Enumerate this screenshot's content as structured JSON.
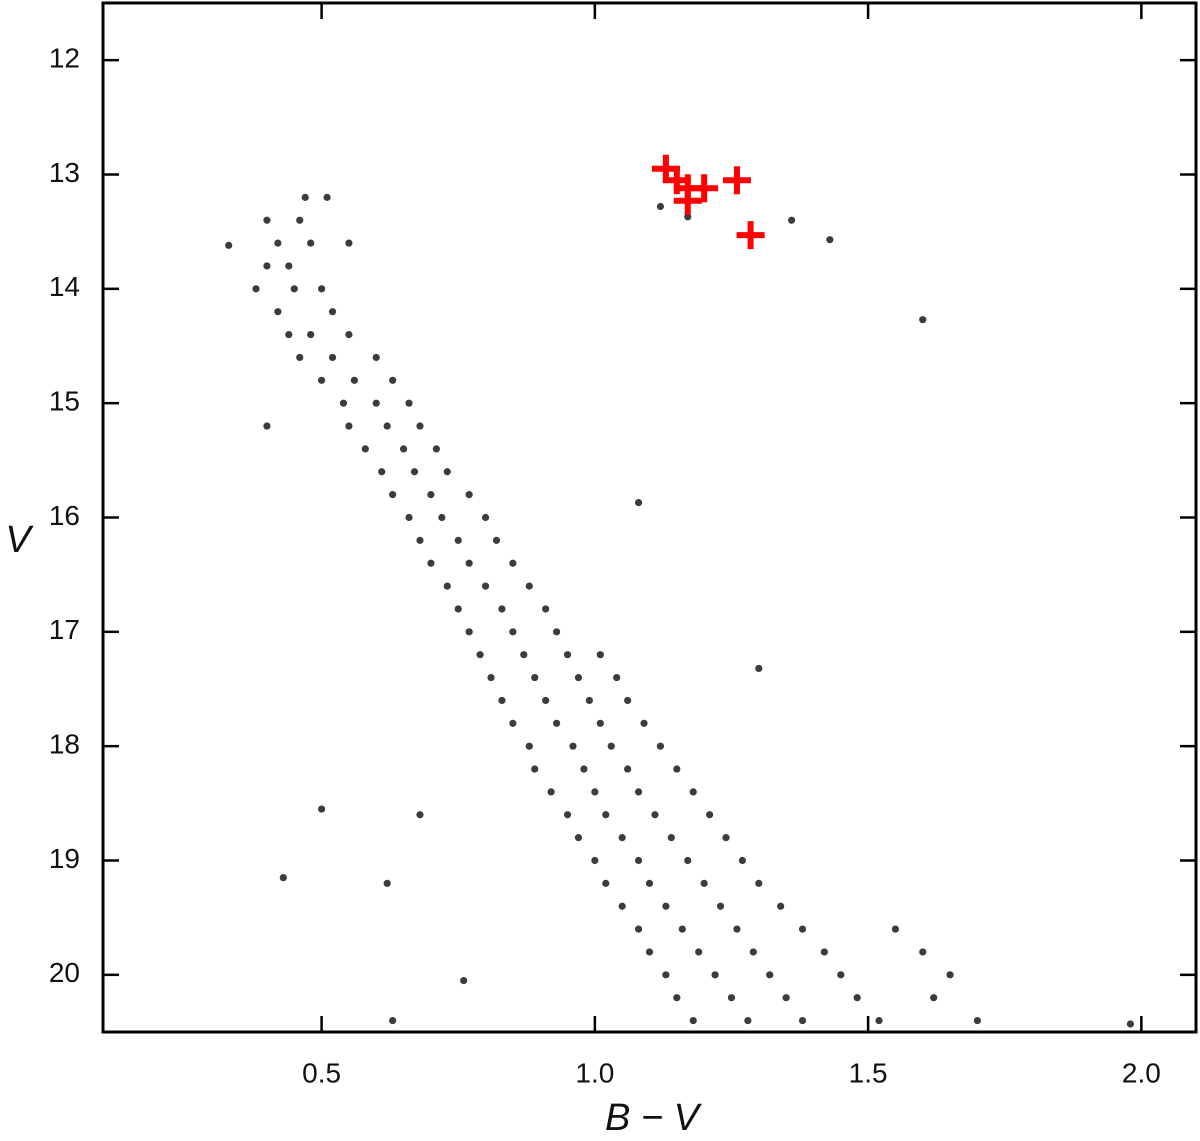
{
  "chart_data": {
    "type": "scatter",
    "xlabel": "B − V",
    "ylabel": "V",
    "xlim": [
      0.1,
      2.1
    ],
    "ylim": [
      20.5,
      11.5
    ],
    "xticks": [
      0.5,
      {
        "value": 1.0,
        "label": "1.0"
      },
      1.5,
      {
        "value": 2.0,
        "label": "2.0"
      }
    ],
    "yticks": [
      12,
      13,
      14,
      15,
      16,
      17,
      18,
      19,
      20
    ],
    "grid": false,
    "series": [
      {
        "color": "#3c3c3c",
        "marker": "circle",
        "x": [
          0.47,
          0.51,
          0.4,
          0.46,
          0.42,
          0.48,
          0.55,
          0.44,
          0.4,
          0.45,
          0.5,
          0.38,
          0.42,
          0.52,
          0.48,
          0.55,
          0.44,
          0.46,
          0.52,
          0.6,
          0.5,
          0.56,
          0.63,
          0.54,
          0.6,
          0.66,
          0.55,
          0.62,
          0.68,
          0.58,
          0.65,
          0.71,
          0.61,
          0.67,
          0.73,
          0.63,
          0.7,
          0.77,
          0.66,
          0.72,
          0.8,
          0.68,
          0.75,
          0.82,
          0.7,
          0.77,
          0.85,
          0.73,
          0.8,
          0.88,
          0.75,
          0.83,
          0.91,
          0.77,
          0.85,
          0.93,
          0.79,
          0.87,
          0.95,
          1.01,
          0.81,
          0.89,
          0.97,
          1.04,
          0.83,
          0.91,
          0.99,
          1.06,
          0.85,
          0.93,
          1.01,
          1.09,
          0.88,
          0.96,
          1.03,
          1.12,
          0.89,
          0.98,
          1.06,
          1.15,
          0.92,
          1.0,
          1.08,
          1.18,
          0.95,
          1.02,
          1.11,
          1.21,
          0.97,
          1.05,
          1.14,
          1.24,
          1.0,
          1.08,
          1.17,
          1.27,
          1.02,
          1.1,
          1.2,
          1.3,
          1.05,
          1.13,
          1.23,
          1.34,
          1.08,
          1.16,
          1.26,
          1.38,
          1.55,
          1.1,
          1.19,
          1.29,
          1.42,
          1.6,
          1.13,
          1.22,
          1.32,
          1.45,
          1.65,
          1.15,
          1.25,
          1.35,
          1.48,
          1.62,
          1.18,
          1.28,
          1.38,
          1.52,
          1.7,
          0.33,
          0.4,
          0.5,
          0.43,
          0.62,
          0.68,
          0.76,
          1.6,
          1.43,
          1.36,
          1.08,
          1.3,
          1.12,
          1.17,
          0.63,
          1.98
        ],
        "y": [
          13.2,
          13.2,
          13.4,
          13.4,
          13.6,
          13.6,
          13.6,
          13.8,
          13.8,
          14.0,
          14.0,
          14.0,
          14.2,
          14.2,
          14.4,
          14.4,
          14.4,
          14.6,
          14.6,
          14.6,
          14.8,
          14.8,
          14.8,
          15.0,
          15.0,
          15.0,
          15.2,
          15.2,
          15.2,
          15.4,
          15.4,
          15.4,
          15.6,
          15.6,
          15.6,
          15.8,
          15.8,
          15.8,
          16.0,
          16.0,
          16.0,
          16.2,
          16.2,
          16.2,
          16.4,
          16.4,
          16.4,
          16.6,
          16.6,
          16.6,
          16.8,
          16.8,
          16.8,
          17.0,
          17.0,
          17.0,
          17.2,
          17.2,
          17.2,
          17.2,
          17.4,
          17.4,
          17.4,
          17.4,
          17.6,
          17.6,
          17.6,
          17.6,
          17.8,
          17.8,
          17.8,
          17.8,
          18.0,
          18.0,
          18.0,
          18.0,
          18.2,
          18.2,
          18.2,
          18.2,
          18.4,
          18.4,
          18.4,
          18.4,
          18.6,
          18.6,
          18.6,
          18.6,
          18.8,
          18.8,
          18.8,
          18.8,
          19.0,
          19.0,
          19.0,
          19.0,
          19.2,
          19.2,
          19.2,
          19.2,
          19.4,
          19.4,
          19.4,
          19.4,
          19.6,
          19.6,
          19.6,
          19.6,
          19.6,
          19.8,
          19.8,
          19.8,
          19.8,
          19.8,
          20.0,
          20.0,
          20.0,
          20.0,
          20.0,
          20.2,
          20.2,
          20.2,
          20.2,
          20.2,
          20.4,
          20.4,
          20.4,
          20.4,
          20.4,
          13.62,
          15.2,
          18.55,
          19.15,
          19.2,
          18.6,
          20.05,
          14.27,
          13.57,
          13.4,
          15.87,
          17.32,
          13.28,
          13.37,
          20.4,
          20.43
        ]
      },
      {
        "color": "#ff0000",
        "marker": "plus",
        "x": [
          1.13,
          1.15,
          1.17,
          1.17,
          1.2,
          1.26,
          1.285
        ],
        "y": [
          12.95,
          13.05,
          13.12,
          13.23,
          13.12,
          13.05,
          13.53
        ]
      }
    ]
  }
}
